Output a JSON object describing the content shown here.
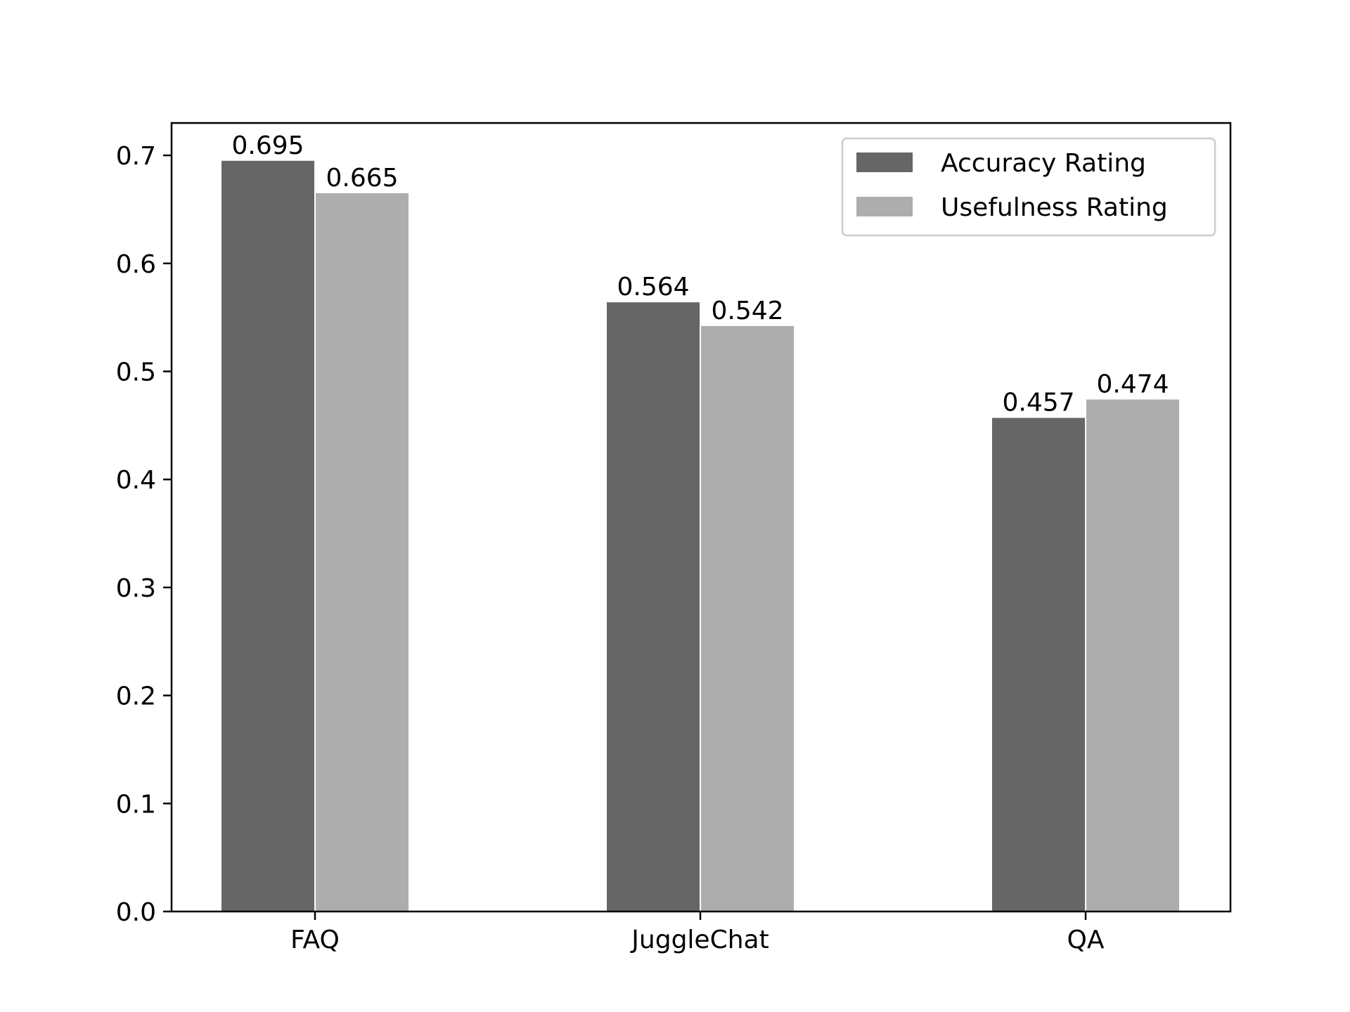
{
  "chart_data": {
    "type": "bar",
    "title": "",
    "xlabel": "",
    "ylabel": "",
    "categories": [
      "FAQ",
      "JuggleChat",
      "QA"
    ],
    "series": [
      {
        "name": "Accuracy Rating",
        "values": [
          0.695,
          0.564,
          0.457
        ],
        "color": "#666666"
      },
      {
        "name": "Usefulness Rating",
        "values": [
          0.665,
          0.542,
          0.474
        ],
        "color": "#adadad"
      }
    ],
    "value_labels": [
      [
        "0.695",
        "0.564",
        "0.457"
      ],
      [
        "0.665",
        "0.542",
        "0.474"
      ]
    ],
    "ylim": [
      0,
      0.73
    ],
    "yticks": [
      0.0,
      0.1,
      0.2,
      0.3,
      0.4,
      0.5,
      0.6,
      0.7
    ],
    "ytick_labels": [
      "0.0",
      "0.1",
      "0.2",
      "0.3",
      "0.4",
      "0.5",
      "0.6",
      "0.7"
    ],
    "grid": false,
    "legend_position": "top-right"
  }
}
